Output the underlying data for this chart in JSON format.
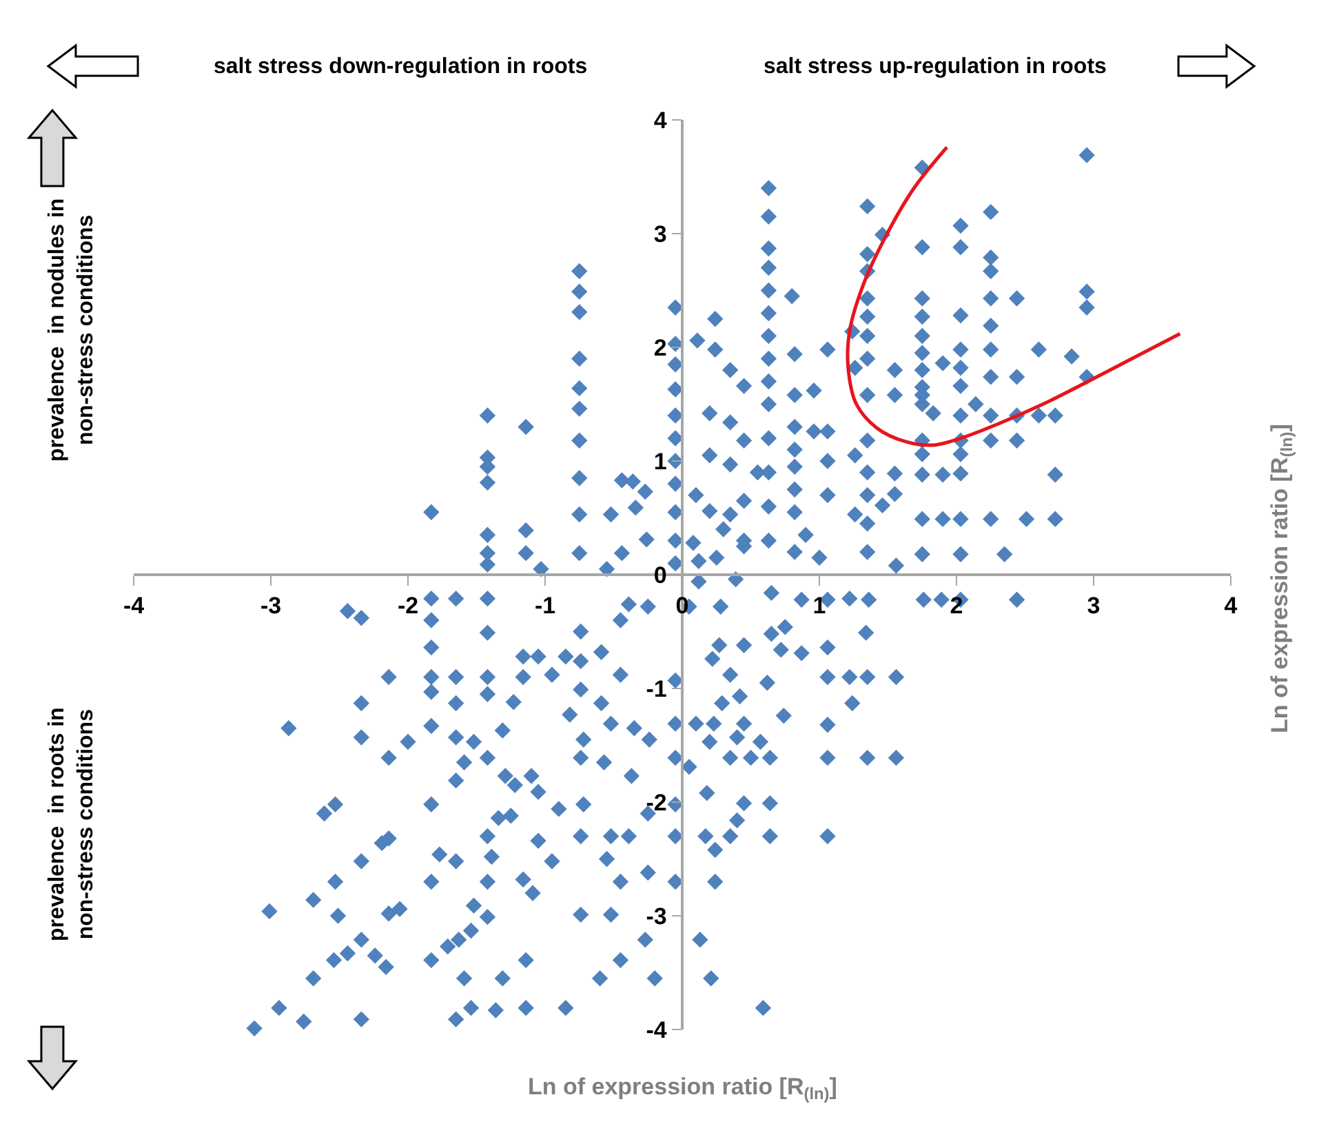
{
  "chart_data": {
    "type": "scatter",
    "xlabel": "Ln of expression ratio [R$_{(ln)}$]",
    "ylabel": "Ln of expression ratio [R$_{(ln)}$]",
    "annotations": [
      "salt stress down-regulation in roots",
      "salt stress up-regulation in roots",
      "prevalence  in nodules in\nnon-stress conditions",
      "prevalence  in roots in\nnon-stress conditions"
    ],
    "xlim": [
      -4,
      4
    ],
    "ylim": [
      -4,
      4
    ],
    "xticks": [
      -4,
      -3,
      -2,
      -1,
      0,
      1,
      2,
      3,
      4
    ],
    "yticks": [
      -4,
      -3,
      -2,
      -1,
      0,
      1,
      2,
      3,
      4
    ],
    "marker": "diamond",
    "series": [
      {
        "color": "#4f81bd",
        "x": [
          -1.83,
          -1.42,
          -1.42,
          -1.42,
          -1.42,
          -1.42,
          -1.42,
          -1.42,
          -1.14,
          -1.14,
          -1.14,
          -1.03,
          -0.75,
          -0.75,
          -0.75,
          -0.75,
          -0.75,
          -0.75,
          -0.75,
          -0.75,
          -0.75,
          -0.75,
          -0.44,
          -0.36,
          -0.27,
          -0.52,
          -0.34,
          -0.26,
          -0.44,
          -0.55,
          -0.05,
          -0.05,
          -0.05,
          -0.05,
          -0.05,
          -0.05,
          -0.05,
          -0.05,
          -0.05,
          -0.05,
          -0.05,
          0.63,
          0.63,
          0.63,
          0.63,
          0.63,
          0.63,
          0.63,
          0.63,
          0.63,
          0.63,
          0.63,
          0.63,
          0.63,
          0.63,
          2.95,
          1.75,
          1.35,
          2.25,
          2.03,
          1.46,
          1.75,
          2.03,
          1.35,
          2.25,
          2.25,
          1.35,
          0.8,
          1.35,
          1.75,
          2.25,
          2.44,
          2.95,
          2.95,
          2.03,
          0.24,
          1.35,
          1.35,
          2.25,
          0.11,
          0.24,
          0.82,
          1.06,
          1.75,
          1.75,
          1.75,
          1.75,
          1.75,
          1.75,
          2.03,
          2.03,
          2.03,
          2.25,
          2.25,
          2.6,
          2.84,
          2.44,
          1.9,
          1.55,
          2.95,
          1.24,
          1.26,
          1.35,
          1.35,
          1.55,
          1.75,
          1.83,
          2.03,
          2.14,
          2.25,
          2.44,
          2.6,
          2.72,
          2.25,
          2.44,
          2.03,
          2.03,
          2.03,
          1.75,
          1.75,
          1.75,
          1.9,
          2.72,
          1.75,
          1.9,
          2.03,
          2.25,
          2.51,
          2.72,
          2.35,
          2.03,
          1.75,
          1.56,
          1.35,
          1.35,
          1.35,
          1.35,
          1.35,
          1.55,
          1.55,
          1.06,
          1.06,
          1.06,
          0.82,
          0.82,
          0.82,
          0.82,
          0.82,
          0.82,
          0.82,
          0.96,
          0.96,
          0.45,
          0.45,
          0.45,
          0.45,
          0.35,
          0.35,
          0.35,
          0.35,
          0.2,
          0.2,
          0.2,
          0.08,
          0.12,
          1.26,
          1.26,
          1.46,
          0.3,
          0.45,
          0.1,
          0.55,
          0.9,
          1.0,
          0.25,
          -2.44,
          -2.34,
          -1.83,
          -1.65,
          -1.42,
          -1.83,
          -1.83,
          -1.42,
          -2.14,
          -1.83,
          -1.65,
          -1.42,
          -1.83,
          -1.42,
          -2.34,
          -1.65,
          -1.23,
          -2.87,
          -2.34,
          -2.0,
          -1.83,
          -2.14,
          -1.65,
          -1.52,
          -1.42,
          -1.31,
          -1.59,
          -1.65,
          -1.29,
          -1.22,
          -1.1,
          -1.05,
          -2.61,
          -2.53,
          -1.83,
          -2.14,
          -2.19,
          -1.42,
          -1.34,
          -1.25,
          -2.34,
          -1.77,
          -1.65,
          -1.39,
          -1.05,
          -0.95,
          -2.53,
          -1.83,
          -1.42,
          -1.16,
          -1.09,
          -2.69,
          -3.01,
          -2.51,
          -2.14,
          -2.06,
          -1.52,
          -1.42,
          -2.34,
          -2.44,
          -2.54,
          -2.24,
          -2.16,
          -1.71,
          -1.63,
          -1.54,
          -1.83,
          -1.14,
          -2.69,
          -1.59,
          -1.31,
          -2.94,
          -2.76,
          -2.34,
          -3.12,
          -1.65,
          -1.54,
          -1.36,
          -1.14,
          -0.85,
          -0.95,
          -0.85,
          -0.74,
          -0.74,
          -0.74,
          -0.59,
          -0.45,
          -0.45,
          -0.39,
          -0.25,
          -0.59,
          -0.82,
          -0.72,
          -0.52,
          -0.35,
          -0.24,
          -0.74,
          -0.57,
          -0.37,
          -0.25,
          -0.72,
          -0.9,
          -0.74,
          -0.52,
          -0.39,
          -0.05,
          -0.55,
          -0.45,
          -0.25,
          -0.05,
          -0.74,
          -0.52,
          -0.27,
          -0.45,
          -0.6,
          -0.2,
          -0.05,
          -0.05,
          -0.05,
          -0.05,
          -1.16,
          -1.05,
          -1.16,
          1.06,
          1.22,
          1.36,
          1.76,
          1.89,
          2.03,
          2.44,
          0.75,
          1.34,
          1.06,
          0.87,
          1.06,
          1.22,
          1.35,
          1.56,
          1.24,
          0.74,
          1.06,
          1.06,
          1.35,
          1.56,
          0.35,
          0.5,
          0.64,
          0.57,
          0.18,
          0.45,
          0.64,
          0.4,
          0.17,
          0.35,
          0.64,
          1.06,
          0.24,
          0.24,
          0.13,
          0.21,
          0.59,
          0.22,
          0.35,
          0.62,
          0.29,
          0.42,
          0.45,
          0.1,
          0.23,
          0.4,
          0.2,
          0.05,
          0.65,
          0.72,
          0.45,
          0.27,
          0.12,
          0.39,
          0.65,
          0.87,
          0.28,
          0.05
        ],
        "values": [
          0.55,
          1.4,
          1.03,
          0.95,
          0.81,
          0.35,
          0.19,
          0.09,
          1.3,
          0.39,
          0.19,
          0.05,
          2.67,
          2.49,
          2.31,
          1.9,
          1.64,
          1.46,
          1.18,
          0.85,
          0.53,
          0.19,
          0.83,
          0.82,
          0.73,
          0.53,
          0.59,
          0.31,
          0.19,
          0.05,
          2.35,
          2.03,
          1.85,
          1.63,
          1.4,
          1.2,
          1.0,
          0.8,
          0.55,
          0.3,
          0.1,
          3.4,
          3.15,
          2.87,
          2.7,
          2.5,
          2.3,
          2.1,
          1.9,
          1.7,
          1.5,
          1.2,
          0.9,
          0.6,
          0.3,
          3.69,
          3.58,
          3.24,
          3.19,
          3.07,
          2.99,
          2.88,
          2.88,
          2.82,
          2.79,
          2.67,
          2.67,
          2.45,
          2.43,
          2.43,
          2.43,
          2.43,
          2.49,
          2.35,
          2.28,
          2.25,
          2.27,
          2.1,
          2.19,
          2.06,
          1.98,
          1.94,
          1.98,
          2.27,
          2.1,
          1.95,
          1.8,
          1.65,
          1.5,
          1.98,
          1.82,
          1.66,
          1.98,
          1.74,
          1.98,
          1.92,
          1.74,
          1.86,
          1.8,
          1.74,
          2.14,
          1.82,
          1.9,
          1.58,
          1.58,
          1.58,
          1.42,
          1.4,
          1.5,
          1.4,
          1.4,
          1.4,
          1.4,
          1.18,
          1.18,
          1.18,
          1.06,
          0.89,
          1.18,
          1.06,
          0.88,
          0.88,
          0.88,
          0.49,
          0.49,
          0.49,
          0.49,
          0.49,
          0.49,
          0.18,
          0.18,
          0.18,
          0.08,
          1.18,
          0.9,
          0.7,
          0.45,
          0.2,
          0.89,
          0.71,
          1.26,
          1.0,
          0.7,
          1.58,
          1.3,
          1.1,
          0.95,
          0.75,
          0.55,
          0.2,
          1.62,
          1.26,
          1.66,
          1.18,
          0.65,
          0.25,
          1.8,
          1.34,
          0.97,
          0.53,
          1.42,
          1.05,
          0.56,
          0.28,
          0.12,
          1.05,
          0.53,
          0.61,
          0.4,
          0.3,
          0.7,
          0.9,
          0.35,
          0.15,
          0.15,
          -0.32,
          -0.38,
          -0.21,
          -0.21,
          -0.21,
          -0.4,
          -0.64,
          -0.51,
          -0.9,
          -0.9,
          -0.9,
          -0.9,
          -1.03,
          -1.05,
          -1.13,
          -1.13,
          -1.12,
          -1.35,
          -1.43,
          -1.47,
          -1.33,
          -1.61,
          -1.43,
          -1.47,
          -1.61,
          -1.37,
          -1.65,
          -1.81,
          -1.77,
          -1.85,
          -1.77,
          -1.91,
          -2.1,
          -2.02,
          -2.02,
          -2.32,
          -2.36,
          -2.3,
          -2.14,
          -2.12,
          -2.52,
          -2.46,
          -2.52,
          -2.48,
          -2.34,
          -2.52,
          -2.7,
          -2.7,
          -2.7,
          -2.68,
          -2.8,
          -2.86,
          -2.96,
          -3.0,
          -2.98,
          -2.94,
          -2.91,
          -3.01,
          -3.21,
          -3.33,
          -3.39,
          -3.35,
          -3.45,
          -3.27,
          -3.21,
          -3.13,
          -3.39,
          -3.39,
          -3.55,
          -3.55,
          -3.55,
          -3.81,
          -3.93,
          -3.91,
          -3.99,
          -3.91,
          -3.81,
          -3.83,
          -3.81,
          -3.81,
          -0.88,
          -0.72,
          -0.5,
          -0.76,
          -1.01,
          -0.68,
          -0.88,
          -0.4,
          -0.26,
          -0.28,
          -1.13,
          -1.23,
          -1.45,
          -1.31,
          -1.35,
          -1.45,
          -1.61,
          -1.65,
          -1.77,
          -2.1,
          -2.02,
          -2.06,
          -2.3,
          -2.3,
          -2.3,
          -2.3,
          -2.5,
          -2.7,
          -2.62,
          -2.7,
          -2.99,
          -2.99,
          -3.21,
          -3.39,
          -3.55,
          -3.55,
          -2.02,
          -1.61,
          -1.31,
          -0.93,
          -0.72,
          -0.72,
          -0.9,
          -0.22,
          -0.21,
          -0.22,
          -0.22,
          -0.22,
          -0.22,
          -0.22,
          -0.46,
          -0.51,
          -0.64,
          -0.69,
          -0.9,
          -0.9,
          -0.9,
          -0.9,
          -1.13,
          -1.24,
          -1.32,
          -1.61,
          -1.61,
          -1.61,
          -1.61,
          -1.61,
          -1.61,
          -1.47,
          -1.92,
          -2.01,
          -2.01,
          -2.16,
          -2.3,
          -2.3,
          -2.3,
          -2.3,
          -2.42,
          -2.7,
          -3.21,
          -3.55,
          -3.81,
          -0.74,
          -0.88,
          -0.95,
          -1.13,
          -1.07,
          -1.31,
          -1.31,
          -1.31,
          -1.43,
          -1.47,
          -1.69,
          -0.52,
          -0.66,
          -0.62,
          -0.62,
          -0.06,
          -0.04,
          -0.16,
          -0.22,
          -0.28,
          -0.28
        ]
      },
      {
        "type": "line",
        "color": "#e8141c",
        "marker": "none",
        "x": [
          1.93,
          1.69,
          1.49,
          1.32,
          1.22,
          1.21,
          1.27,
          1.42,
          1.63,
          1.83,
          2.03,
          2.29,
          2.63,
          2.96,
          3.63
        ],
        "values": [
          3.76,
          3.4,
          2.99,
          2.55,
          2.14,
          1.82,
          1.5,
          1.29,
          1.17,
          1.14,
          1.2,
          1.32,
          1.5,
          1.7,
          2.12
        ]
      }
    ]
  }
}
